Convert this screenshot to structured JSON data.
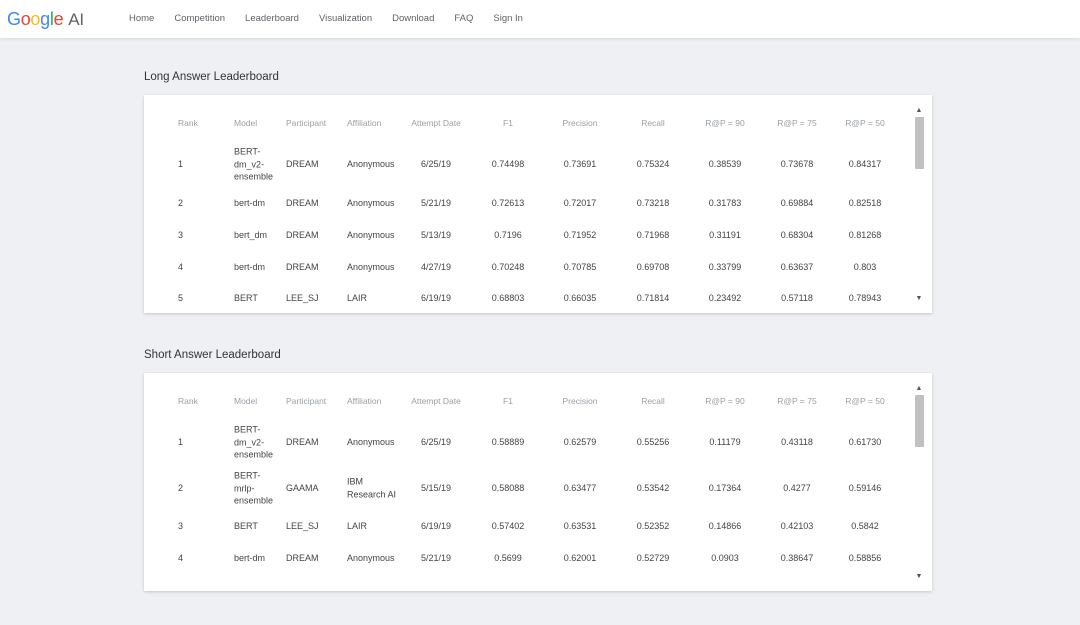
{
  "header": {
    "logo": {
      "google_letters": [
        "G",
        "o",
        "o",
        "g",
        "l",
        "e"
      ],
      "letter_colors": [
        "#4285F4",
        "#EA4335",
        "#FBBC05",
        "#4285F4",
        "#34A853",
        "#EA4335"
      ],
      "suffix": "AI"
    },
    "nav": [
      "Home",
      "Competition",
      "Leaderboard",
      "Visualization",
      "Download",
      "FAQ",
      "Sign In"
    ]
  },
  "long_answer": {
    "title": "Long Answer Leaderboard",
    "columns": [
      "Rank",
      "Model",
      "Participant",
      "Affiliation",
      "Attempt Date",
      "F1",
      "Precision",
      "Recall",
      "R@P = 90",
      "R@P = 75",
      "R@P = 50"
    ],
    "rows": [
      [
        "1",
        "BERT-\ndm_v2-\nensemble",
        "DREAM",
        "Anonymous",
        "6/25/19",
        "0.74498",
        "0.73691",
        "0.75324",
        "0.38539",
        "0.73678",
        "0.84317"
      ],
      [
        "2",
        "bert-dm",
        "DREAM",
        "Anonymous",
        "5/21/19",
        "0.72613",
        "0.72017",
        "0.73218",
        "0.31783",
        "0.69884",
        "0.82518"
      ],
      [
        "3",
        "bert_dm",
        "DREAM",
        "Anonymous",
        "5/13/19",
        "0.7196",
        "0.71952",
        "0.71968",
        "0.31191",
        "0.68304",
        "0.81268"
      ],
      [
        "4",
        "bert-dm",
        "DREAM",
        "Anonymous",
        "4/27/19",
        "0.70248",
        "0.70785",
        "0.69708",
        "0.33799",
        "0.63637",
        "0.803"
      ],
      [
        "5",
        "BERT",
        "LEE_SJ",
        "LAIR",
        "6/19/19",
        "0.68803",
        "0.66035",
        "0.71814",
        "0.23492",
        "0.57118",
        "0.78943"
      ]
    ],
    "scrollbar": {
      "up": "▲",
      "down": "▼"
    }
  },
  "short_answer": {
    "title": "Short Answer Leaderboard",
    "columns": [
      "Rank",
      "Model",
      "Participant",
      "Affiliation",
      "Attempt Date",
      "F1",
      "Precision",
      "Recall",
      "R@P = 90",
      "R@P = 75",
      "R@P = 50"
    ],
    "rows": [
      [
        "1",
        "BERT-\ndm_v2-\nensemble",
        "DREAM",
        "Anonymous",
        "6/25/19",
        "0.58889",
        "0.62579",
        "0.55256",
        "0.11179",
        "0.43118",
        "0.61730"
      ],
      [
        "2",
        "BERT-\nmrlp-\nensemble",
        "GAAMA",
        "IBM\nResearch AI",
        "5/15/19",
        "0.58088",
        "0.63477",
        "0.53542",
        "0.17364",
        "0.4277",
        "0.59146"
      ],
      [
        "3",
        "BERT",
        "LEE_SJ",
        "LAIR",
        "6/19/19",
        "0.57402",
        "0.63531",
        "0.52352",
        "0.14866",
        "0.42103",
        "0.5842"
      ],
      [
        "4",
        "bert-dm",
        "DREAM",
        "Anonymous",
        "5/21/19",
        "0.5699",
        "0.62001",
        "0.52729",
        "0.0903",
        "0.38647",
        "0.58856"
      ]
    ],
    "scrollbar": {
      "up": "▲",
      "down": "▼"
    }
  }
}
